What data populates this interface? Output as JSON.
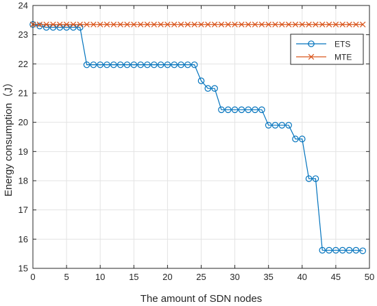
{
  "chart_data": {
    "type": "line",
    "title": "",
    "xlabel": "The amount of SDN nodes",
    "ylabel": "Energy consumption（J）",
    "xlim": [
      0,
      50
    ],
    "ylim": [
      15,
      24
    ],
    "xticks": [
      0,
      5,
      10,
      15,
      20,
      25,
      30,
      35,
      40,
      45,
      50
    ],
    "yticks": [
      15,
      16,
      17,
      18,
      19,
      20,
      21,
      22,
      23,
      24
    ],
    "grid": true,
    "legend_position": "top-right",
    "series": [
      {
        "name": "ETS",
        "color": "#0072BD",
        "marker": "circle",
        "x": [
          0,
          1,
          2,
          3,
          4,
          5,
          6,
          7,
          8,
          9,
          10,
          11,
          12,
          13,
          14,
          15,
          16,
          17,
          18,
          19,
          20,
          21,
          22,
          23,
          24,
          25,
          26,
          27,
          28,
          29,
          30,
          31,
          32,
          33,
          34,
          35,
          36,
          37,
          38,
          39,
          40,
          41,
          42,
          43,
          44,
          45,
          46,
          47,
          48,
          49
        ],
        "values": [
          23.35,
          23.3,
          23.25,
          23.25,
          23.25,
          23.25,
          23.25,
          23.25,
          21.97,
          21.97,
          21.97,
          21.97,
          21.97,
          21.97,
          21.97,
          21.97,
          21.97,
          21.97,
          21.97,
          21.97,
          21.97,
          21.97,
          21.97,
          21.97,
          21.97,
          21.42,
          21.16,
          21.16,
          20.43,
          20.43,
          20.43,
          20.43,
          20.43,
          20.43,
          20.43,
          19.9,
          19.9,
          19.9,
          19.9,
          19.43,
          19.43,
          18.07,
          18.07,
          15.62,
          15.62,
          15.62,
          15.62,
          15.62,
          15.62,
          15.6
        ]
      },
      {
        "name": "MTE",
        "color": "#D95319",
        "marker": "x",
        "x": [
          0,
          1,
          2,
          3,
          4,
          5,
          6,
          7,
          8,
          9,
          10,
          11,
          12,
          13,
          14,
          15,
          16,
          17,
          18,
          19,
          20,
          21,
          22,
          23,
          24,
          25,
          26,
          27,
          28,
          29,
          30,
          31,
          32,
          33,
          34,
          35,
          36,
          37,
          38,
          39,
          40,
          41,
          42,
          43,
          44,
          45,
          46,
          47,
          48,
          49
        ],
        "values": [
          23.35,
          23.35,
          23.35,
          23.35,
          23.35,
          23.35,
          23.35,
          23.35,
          23.35,
          23.35,
          23.35,
          23.35,
          23.35,
          23.35,
          23.35,
          23.35,
          23.35,
          23.35,
          23.35,
          23.35,
          23.35,
          23.35,
          23.35,
          23.35,
          23.35,
          23.35,
          23.35,
          23.35,
          23.35,
          23.35,
          23.35,
          23.35,
          23.35,
          23.35,
          23.35,
          23.35,
          23.35,
          23.35,
          23.35,
          23.35,
          23.35,
          23.35,
          23.35,
          23.35,
          23.35,
          23.35,
          23.35,
          23.35,
          23.35,
          23.35
        ]
      }
    ]
  }
}
